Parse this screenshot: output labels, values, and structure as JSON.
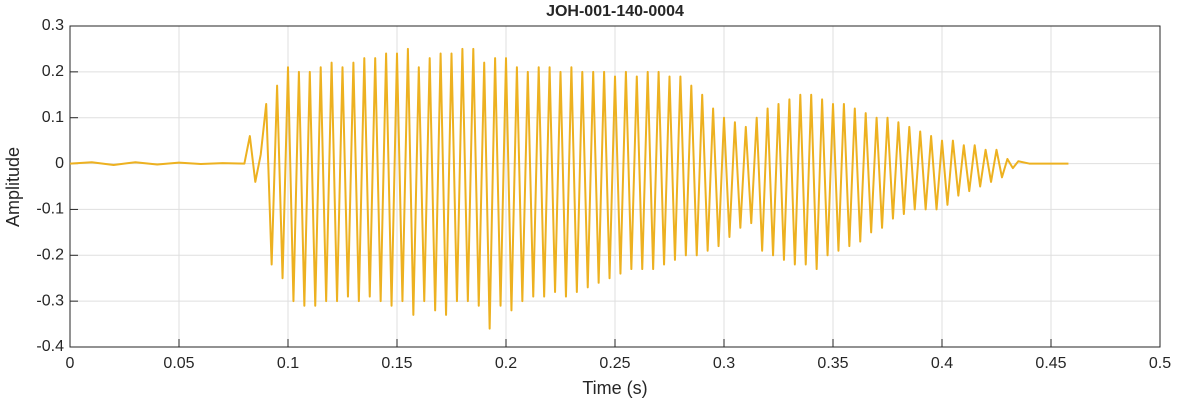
{
  "chart_data": {
    "type": "line",
    "title": "JOH-001-140-0004",
    "x_label": "Time (s)",
    "y_label": "Amplitude",
    "x": [
      0,
      0.01,
      0.02,
      0.03,
      0.04,
      0.05,
      0.06,
      0.07,
      0.08,
      0.0825,
      0.085,
      0.0875,
      0.09,
      0.0925,
      0.095,
      0.0975,
      0.1,
      0.1025,
      0.105,
      0.1075,
      0.11,
      0.1125,
      0.115,
      0.1175,
      0.12,
      0.1225,
      0.125,
      0.1275,
      0.13,
      0.1325,
      0.135,
      0.1375,
      0.14,
      0.1425,
      0.145,
      0.1475,
      0.15,
      0.1525,
      0.155,
      0.1575,
      0.16,
      0.1625,
      0.165,
      0.1675,
      0.17,
      0.1725,
      0.175,
      0.1775,
      0.18,
      0.1825,
      0.185,
      0.1875,
      0.19,
      0.1925,
      0.195,
      0.1975,
      0.2,
      0.2025,
      0.205,
      0.2075,
      0.21,
      0.2125,
      0.215,
      0.2175,
      0.22,
      0.2225,
      0.225,
      0.2275,
      0.23,
      0.2325,
      0.235,
      0.2375,
      0.24,
      0.2425,
      0.245,
      0.2475,
      0.25,
      0.2525,
      0.255,
      0.2575,
      0.26,
      0.2625,
      0.265,
      0.2675,
      0.27,
      0.2725,
      0.275,
      0.2775,
      0.28,
      0.2825,
      0.285,
      0.2875,
      0.29,
      0.2925,
      0.295,
      0.2975,
      0.3,
      0.3025,
      0.305,
      0.3075,
      0.31,
      0.3125,
      0.315,
      0.3175,
      0.32,
      0.3225,
      0.325,
      0.3275,
      0.33,
      0.3325,
      0.335,
      0.3375,
      0.34,
      0.3425,
      0.345,
      0.3475,
      0.35,
      0.3525,
      0.355,
      0.3575,
      0.36,
      0.3625,
      0.365,
      0.3675,
      0.37,
      0.3725,
      0.375,
      0.3775,
      0.38,
      0.3825,
      0.385,
      0.3875,
      0.39,
      0.3925,
      0.395,
      0.3975,
      0.4,
      0.4025,
      0.405,
      0.4075,
      0.41,
      0.4125,
      0.415,
      0.4175,
      0.42,
      0.4225,
      0.425,
      0.4275,
      0.43,
      0.4325,
      0.435,
      0.44,
      0.458
    ],
    "series": [
      {
        "color": "#EDB120",
        "values": [
          0,
          0.003,
          -0.003,
          0.003,
          -0.002,
          0.002,
          -0.001,
          0.001,
          0,
          0.06,
          -0.04,
          0.02,
          0.13,
          -0.22,
          0.17,
          -0.25,
          0.21,
          -0.3,
          0.2,
          -0.31,
          0.2,
          -0.31,
          0.21,
          -0.3,
          0.22,
          -0.3,
          0.21,
          -0.29,
          0.22,
          -0.3,
          0.23,
          -0.29,
          0.23,
          -0.3,
          0.24,
          -0.31,
          0.24,
          -0.3,
          0.25,
          -0.33,
          0.21,
          -0.3,
          0.23,
          -0.32,
          0.24,
          -0.33,
          0.24,
          -0.3,
          0.25,
          -0.3,
          0.25,
          -0.31,
          0.22,
          -0.36,
          0.23,
          -0.31,
          0.23,
          -0.32,
          0.21,
          -0.3,
          0.2,
          -0.29,
          0.21,
          -0.29,
          0.21,
          -0.28,
          0.2,
          -0.29,
          0.21,
          -0.28,
          0.2,
          -0.27,
          0.2,
          -0.26,
          0.2,
          -0.25,
          0.19,
          -0.24,
          0.2,
          -0.23,
          0.19,
          -0.23,
          0.2,
          -0.23,
          0.2,
          -0.22,
          0.19,
          -0.21,
          0.19,
          -0.2,
          0.17,
          -0.2,
          0.15,
          -0.19,
          0.12,
          -0.18,
          0.1,
          -0.16,
          0.09,
          -0.14,
          0.08,
          -0.13,
          0.1,
          -0.19,
          0.12,
          -0.2,
          0.13,
          -0.21,
          0.14,
          -0.22,
          0.15,
          -0.22,
          0.15,
          -0.23,
          0.14,
          -0.2,
          0.13,
          -0.19,
          0.13,
          -0.18,
          0.12,
          -0.17,
          0.11,
          -0.15,
          0.1,
          -0.14,
          0.1,
          -0.12,
          0.09,
          -0.11,
          0.08,
          -0.1,
          0.07,
          -0.1,
          0.06,
          -0.1,
          0.05,
          -0.09,
          0.05,
          -0.07,
          0.04,
          -0.06,
          0.04,
          -0.05,
          0.03,
          -0.04,
          0.03,
          -0.03,
          0.01,
          -0.01,
          0.005,
          0,
          0
        ]
      }
    ],
    "xlim": [
      0,
      0.5
    ],
    "xticks": [
      0,
      0.05,
      0.1,
      0.15,
      0.2,
      0.25,
      0.3,
      0.35,
      0.4,
      0.45,
      0.5
    ],
    "ylim": [
      -0.4,
      0.3
    ],
    "yticks": [
      -0.4,
      -0.3,
      -0.2,
      -0.1,
      0,
      0.1,
      0.2,
      0.3
    ],
    "grid": true
  }
}
